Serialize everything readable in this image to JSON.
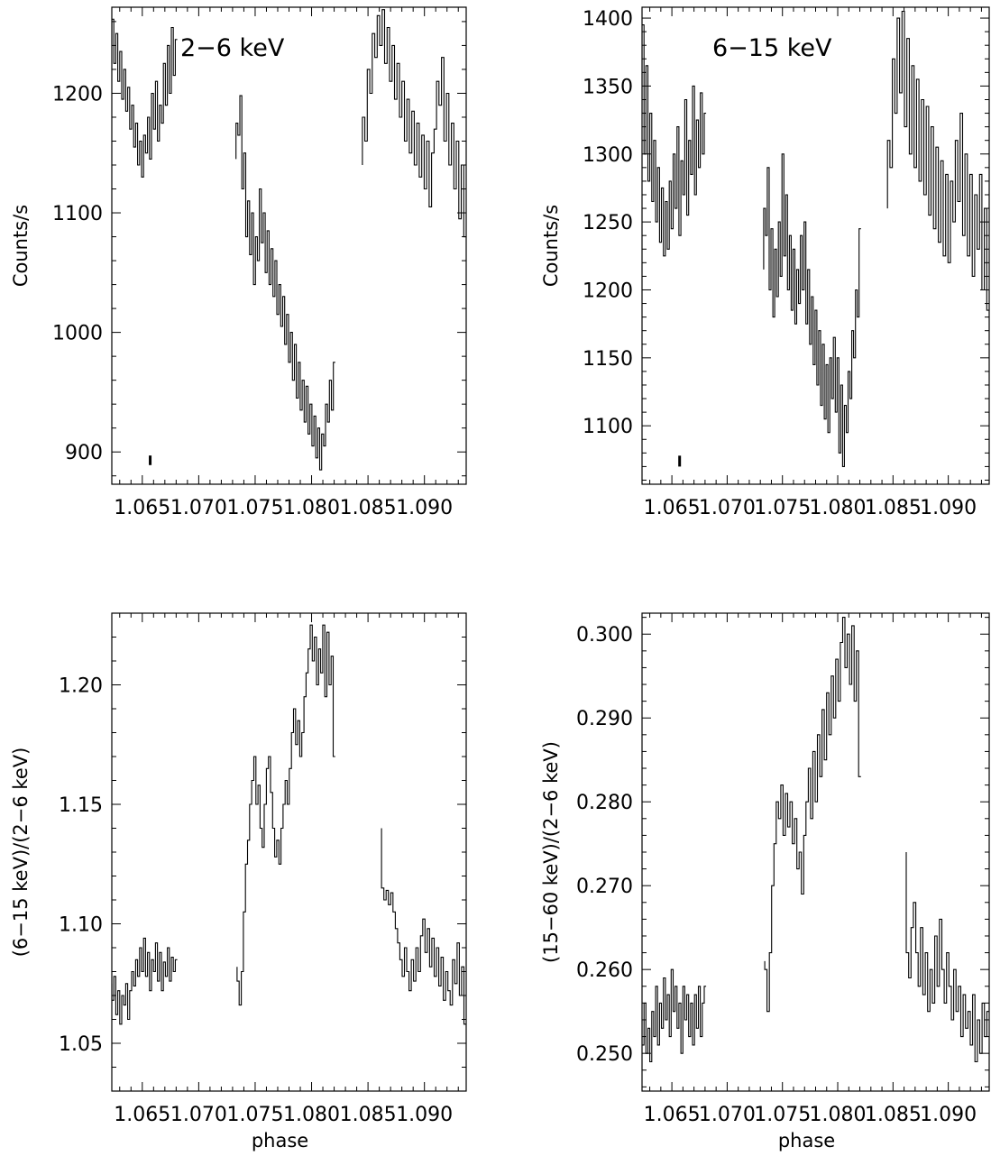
{
  "chart_data": [
    {
      "id": "p1",
      "type": "line",
      "title": "",
      "annotation": "2−6 keV",
      "xlabel": "",
      "ylabel": "Counts/s",
      "xlim": [
        1.0623,
        1.0937
      ],
      "ylim": [
        873,
        1272
      ],
      "xticks": [
        {
          "value": 1.065,
          "label": "1.065"
        },
        {
          "value": 1.07,
          "label": "1.070"
        },
        {
          "value": 1.075,
          "label": "1.075"
        },
        {
          "value": 1.08,
          "label": "1.080"
        },
        {
          "value": 1.085,
          "label": "1.085"
        },
        {
          "value": 1.09,
          "label": "1.090"
        }
      ],
      "yticks": [
        {
          "value": 900,
          "label": "900"
        },
        {
          "value": 1000,
          "label": "1000"
        },
        {
          "value": 1100,
          "label": "1100"
        },
        {
          "value": 1200,
          "label": "1200"
        }
      ],
      "error_bar": {
        "x": 1.0657,
        "y": 893,
        "half_height": 4
      },
      "series": [
        {
          "segments": [
            {
              "x_start": 1.0623,
              "x_end": 1.0681,
              "values": [
                1240,
                1262,
                1225,
                1250,
                1210,
                1235,
                1195,
                1220,
                1185,
                1205,
                1170,
                1190,
                1155,
                1175,
                1140,
                1160,
                1130,
                1165,
                1150,
                1180,
                1145,
                1200,
                1170,
                1210,
                1160,
                1190,
                1175,
                1225,
                1190,
                1240,
                1200,
                1255,
                1215,
                1245
              ]
            },
            {
              "x_start": 1.0733,
              "x_end": 1.0821,
              "values": [
                1145,
                1175,
                1165,
                1198,
                1120,
                1150,
                1080,
                1110,
                1065,
                1100,
                1040,
                1080,
                1060,
                1120,
                1075,
                1100,
                1050,
                1085,
                1040,
                1070,
                1030,
                1060,
                1015,
                1040,
                1005,
                1030,
                990,
                1015,
                975,
                1000,
                960,
                990,
                945,
                975,
                935,
                960,
                925,
                955,
                915,
                940,
                905,
                930,
                895,
                920,
                885,
                915,
                905,
                940,
                925,
                960,
                935,
                975
              ]
            },
            {
              "x_start": 1.0845,
              "x_end": 1.0937,
              "values": [
                1140,
                1180,
                1160,
                1220,
                1200,
                1250,
                1230,
                1265,
                1240,
                1270,
                1225,
                1255,
                1210,
                1240,
                1195,
                1225,
                1180,
                1210,
                1160,
                1195,
                1150,
                1185,
                1140,
                1175,
                1130,
                1165,
                1120,
                1160,
                1105,
                1150,
                1170,
                1210,
                1190,
                1230,
                1160,
                1200,
                1140,
                1175,
                1120,
                1160,
                1095,
                1140,
                1080
              ]
            }
          ]
        }
      ]
    },
    {
      "id": "p2",
      "type": "line",
      "title": "",
      "annotation": "6−15 keV",
      "xlabel": "",
      "ylabel": "Counts/s",
      "xlim": [
        1.0623,
        1.0937
      ],
      "ylim": [
        1057,
        1408
      ],
      "xticks": [
        {
          "value": 1.065,
          "label": "1.065"
        },
        {
          "value": 1.07,
          "label": "1.070"
        },
        {
          "value": 1.075,
          "label": "1.075"
        },
        {
          "value": 1.08,
          "label": "1.080"
        },
        {
          "value": 1.085,
          "label": "1.085"
        },
        {
          "value": 1.09,
          "label": "1.090"
        }
      ],
      "yticks": [
        {
          "value": 1100,
          "label": "1100"
        },
        {
          "value": 1150,
          "label": "1150"
        },
        {
          "value": 1200,
          "label": "1200"
        },
        {
          "value": 1250,
          "label": "1250"
        },
        {
          "value": 1300,
          "label": "1300"
        },
        {
          "value": 1350,
          "label": "1350"
        },
        {
          "value": 1400,
          "label": "1400"
        }
      ],
      "error_bar": {
        "x": 1.0657,
        "y": 1074,
        "half_height": 4
      },
      "series": [
        {
          "segments": [
            {
              "x_start": 1.0623,
              "x_end": 1.0681,
              "values": [
                1330,
                1395,
                1300,
                1365,
                1280,
                1330,
                1265,
                1310,
                1250,
                1290,
                1235,
                1275,
                1225,
                1265,
                1230,
                1280,
                1245,
                1300,
                1260,
                1320,
                1240,
                1295,
                1270,
                1340,
                1255,
                1310,
                1285,
                1350,
                1270,
                1325,
                1290,
                1345,
                1300,
                1330
              ]
            },
            {
              "x_start": 1.0733,
              "x_end": 1.0821,
              "values": [
                1215,
                1260,
                1240,
                1290,
                1200,
                1245,
                1180,
                1230,
                1195,
                1250,
                1210,
                1300,
                1225,
                1270,
                1200,
                1240,
                1185,
                1230,
                1175,
                1215,
                1190,
                1240,
                1200,
                1250,
                1175,
                1215,
                1160,
                1195,
                1145,
                1185,
                1130,
                1170,
                1115,
                1160,
                1105,
                1145,
                1095,
                1150,
                1120,
                1165,
                1110,
                1150,
                1080,
                1130,
                1070,
                1115,
                1095,
                1140,
                1120,
                1170,
                1150,
                1200,
                1180,
                1245
              ]
            },
            {
              "x_start": 1.0845,
              "x_end": 1.0937,
              "values": [
                1260,
                1310,
                1290,
                1370,
                1330,
                1400,
                1345,
                1405,
                1320,
                1385,
                1300,
                1365,
                1290,
                1355,
                1280,
                1340,
                1270,
                1335,
                1255,
                1320,
                1245,
                1305,
                1235,
                1295,
                1225,
                1285,
                1220,
                1280,
                1250,
                1310,
                1265,
                1330,
                1240,
                1300,
                1225,
                1285,
                1210,
                1270,
                1230,
                1285,
                1200,
                1260,
                1185
              ]
            }
          ]
        }
      ]
    },
    {
      "id": "p3",
      "type": "line",
      "title": "",
      "annotation": "",
      "xlabel": "phase",
      "ylabel": "(6−15 keV)/(2−6 keV)",
      "xlim": [
        1.0623,
        1.0937
      ],
      "ylim": [
        1.03,
        1.23
      ],
      "xticks": [
        {
          "value": 1.065,
          "label": "1.065"
        },
        {
          "value": 1.07,
          "label": "1.070"
        },
        {
          "value": 1.075,
          "label": "1.075"
        },
        {
          "value": 1.08,
          "label": "1.080"
        },
        {
          "value": 1.085,
          "label": "1.085"
        },
        {
          "value": 1.09,
          "label": "1.090"
        }
      ],
      "yticks": [
        {
          "value": 1.05,
          "label": "1.05"
        },
        {
          "value": 1.1,
          "label": "1.10"
        },
        {
          "value": 1.15,
          "label": "1.15"
        },
        {
          "value": 1.2,
          "label": "1.20"
        }
      ],
      "error_bar": null,
      "series": [
        {
          "segments": [
            {
              "x_start": 1.0623,
              "x_end": 1.0681,
              "values": [
                1.075,
                1.068,
                1.078,
                1.062,
                1.072,
                1.058,
                1.07,
                1.066,
                1.075,
                1.06,
                1.072,
                1.08,
                1.074,
                1.085,
                1.078,
                1.09,
                1.08,
                1.094,
                1.078,
                1.088,
                1.072,
                1.085,
                1.08,
                1.092,
                1.076,
                1.088,
                1.072,
                1.084,
                1.078,
                1.09,
                1.076,
                1.086,
                1.08,
                1.085
              ]
            },
            {
              "x_start": 1.0734,
              "x_end": 1.0821,
              "values": [
                1.082,
                1.076,
                1.066,
                1.08,
                1.105,
                1.125,
                1.135,
                1.15,
                1.16,
                1.17,
                1.15,
                1.158,
                1.14,
                1.132,
                1.15,
                1.165,
                1.17,
                1.155,
                1.14,
                1.128,
                1.135,
                1.125,
                1.14,
                1.15,
                1.16,
                1.15,
                1.165,
                1.18,
                1.19,
                1.175,
                1.185,
                1.17,
                1.18,
                1.195,
                1.205,
                1.215,
                1.225,
                1.21,
                1.22,
                1.2,
                1.215,
                1.205,
                1.225,
                1.195,
                1.222,
                1.2,
                1.212,
                1.17
              ]
            },
            {
              "x_start": 1.0862,
              "x_end": 1.0937,
              "values": [
                1.14,
                1.115,
                1.11,
                1.114,
                1.108,
                1.113,
                1.105,
                1.098,
                1.092,
                1.085,
                1.078,
                1.09,
                1.08,
                1.072,
                1.085,
                1.076,
                1.09,
                1.08,
                1.095,
                1.102,
                1.088,
                1.098,
                1.082,
                1.094,
                1.078,
                1.09,
                1.074,
                1.086,
                1.068,
                1.08,
                1.072,
                1.066,
                1.085,
                1.075,
                1.092,
                1.07,
                1.082,
                1.058
              ]
            }
          ]
        }
      ]
    },
    {
      "id": "p4",
      "type": "line",
      "title": "",
      "annotation": "",
      "xlabel": "phase",
      "ylabel": "(15−60 keV)/(2−6 keV)",
      "xlim": [
        1.0623,
        1.0937
      ],
      "ylim": [
        0.2455,
        0.3025
      ],
      "xticks": [
        {
          "value": 1.065,
          "label": "1.065"
        },
        {
          "value": 1.07,
          "label": "1.070"
        },
        {
          "value": 1.075,
          "label": "1.075"
        },
        {
          "value": 1.08,
          "label": "1.080"
        },
        {
          "value": 1.085,
          "label": "1.085"
        },
        {
          "value": 1.09,
          "label": "1.090"
        }
      ],
      "yticks": [
        {
          "value": 0.25,
          "label": "0.250"
        },
        {
          "value": 0.26,
          "label": "0.260"
        },
        {
          "value": 0.27,
          "label": "0.270"
        },
        {
          "value": 0.28,
          "label": "0.280"
        },
        {
          "value": 0.29,
          "label": "0.290"
        },
        {
          "value": 0.3,
          "label": "0.300"
        }
      ],
      "error_bar": null,
      "series": [
        {
          "segments": [
            {
              "x_start": 1.0623,
              "x_end": 1.0681,
              "values": [
                0.254,
                0.251,
                0.256,
                0.25,
                0.253,
                0.249,
                0.255,
                0.252,
                0.258,
                0.251,
                0.256,
                0.253,
                0.259,
                0.254,
                0.257,
                0.252,
                0.26,
                0.255,
                0.258,
                0.253,
                0.256,
                0.25,
                0.258,
                0.254,
                0.257,
                0.252,
                0.256,
                0.251,
                0.257,
                0.253,
                0.258,
                0.252,
                0.256,
                0.258
              ]
            },
            {
              "x_start": 1.0734,
              "x_end": 1.0821,
              "values": [
                0.261,
                0.26,
                0.255,
                0.262,
                0.27,
                0.275,
                0.28,
                0.278,
                0.282,
                0.276,
                0.281,
                0.277,
                0.28,
                0.275,
                0.278,
                0.272,
                0.274,
                0.269,
                0.276,
                0.28,
                0.284,
                0.278,
                0.286,
                0.28,
                0.288,
                0.283,
                0.291,
                0.285,
                0.293,
                0.288,
                0.295,
                0.29,
                0.297,
                0.292,
                0.299,
                0.302,
                0.296,
                0.3,
                0.294,
                0.301,
                0.292,
                0.298,
                0.283
              ]
            },
            {
              "x_start": 1.0862,
              "x_end": 1.0937,
              "values": [
                0.274,
                0.262,
                0.259,
                0.265,
                0.268,
                0.262,
                0.258,
                0.265,
                0.257,
                0.262,
                0.255,
                0.26,
                0.256,
                0.264,
                0.258,
                0.266,
                0.26,
                0.256,
                0.262,
                0.258,
                0.254,
                0.26,
                0.255,
                0.258,
                0.252,
                0.257,
                0.253,
                0.255,
                0.251,
                0.257,
                0.249,
                0.254,
                0.25,
                0.256,
                0.252,
                0.255
              ]
            }
          ]
        }
      ]
    }
  ]
}
